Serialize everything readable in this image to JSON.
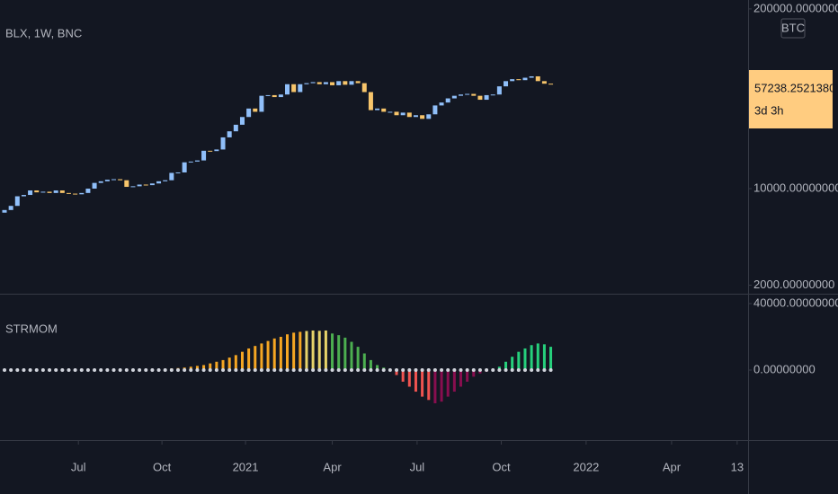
{
  "chart_data": [
    {
      "type": "candlestick",
      "title": "BLX, 1W, BNC",
      "currency": "BTC",
      "countdown": "3d 3h",
      "log": true,
      "grid": false,
      "up_color": "#90bff9",
      "down_color": "#f7c56b",
      "ylim": [
        1735,
        232000
      ],
      "yticks": [
        {
          "value": 200000,
          "label": "200000.00000000"
        },
        {
          "value": 10000,
          "label": "10000.00000000"
        },
        {
          "value": 2000,
          "label": "2000.00000000"
        }
      ],
      "open": [
        6700,
        7000,
        7500,
        8800,
        9000,
        9700,
        9400,
        9500,
        9300,
        9700,
        9300,
        9200,
        9100,
        9300,
        10000,
        11000,
        11300,
        11600,
        11700,
        11500,
        10300,
        10400,
        10700,
        10600,
        10900,
        11300,
        11500,
        13000,
        13100,
        15500,
        15700,
        16000,
        18800,
        18700,
        19200,
        23500,
        26000,
        29000,
        33000,
        38000,
        36000,
        47000,
        47500,
        46000,
        48000,
        57000,
        50000,
        57000,
        58000,
        59000,
        57000,
        59000,
        56000,
        60000,
        56500,
        60000,
        58000,
        50000,
        37000,
        38000,
        36000,
        36000,
        34000,
        35500,
        33000,
        34000,
        32000,
        34500,
        40000,
        42000,
        45000,
        47000,
        48000,
        48500,
        47000,
        44000,
        47500,
        48000,
        55000,
        60000,
        62000,
        61000,
        63500,
        65000,
        60000,
        57500
      ],
      "close": [
        7000,
        7500,
        8800,
        9000,
        9700,
        9400,
        9500,
        9300,
        9700,
        9300,
        9200,
        9100,
        9300,
        10000,
        11000,
        11300,
        11600,
        11700,
        11500,
        10300,
        10400,
        10700,
        10600,
        10900,
        11300,
        11500,
        13000,
        13100,
        15500,
        15700,
        16000,
        18800,
        18700,
        19200,
        23500,
        26000,
        29000,
        33000,
        38000,
        36000,
        47000,
        47500,
        46000,
        48000,
        57000,
        50000,
        57000,
        58000,
        59000,
        57000,
        59000,
        56000,
        60000,
        56500,
        60000,
        58000,
        50000,
        37000,
        38000,
        36000,
        36000,
        34000,
        35500,
        33000,
        34000,
        32000,
        34500,
        40000,
        42000,
        45000,
        47000,
        48000,
        48500,
        47000,
        44000,
        47500,
        48000,
        55000,
        60000,
        62000,
        61000,
        63500,
        65000,
        60000,
        57500,
        57238.25213809
      ]
    },
    {
      "type": "bar",
      "title": "STRMOM",
      "grid": false,
      "ylim": [
        -42160,
        45950
      ],
      "yticks": [
        {
          "value": 40000,
          "label": "40000.00000000"
        },
        {
          "value": 0,
          "label": "0.00000000"
        }
      ],
      "xlim": [
        -0.7,
        115.7
      ],
      "xticks": [
        {
          "value": 11.5,
          "label": "Jul"
        },
        {
          "value": 24.5,
          "label": "Oct"
        },
        {
          "value": 37.5,
          "label": "2021"
        },
        {
          "value": 51,
          "label": "Apr"
        },
        {
          "value": 64.2,
          "label": "Jul"
        },
        {
          "value": 77.3,
          "label": "Oct"
        },
        {
          "value": 90.5,
          "label": "2022"
        },
        {
          "value": 103.8,
          "label": "Apr"
        },
        {
          "value": 114,
          "label": "13"
        }
      ],
      "values": [
        300,
        200,
        500,
        400,
        300,
        200,
        400,
        300,
        200,
        300,
        400,
        300,
        500,
        600,
        400,
        300,
        200,
        300,
        400,
        300,
        200,
        300,
        400,
        500,
        600,
        800,
        1000,
        1200,
        1500,
        2000,
        2500,
        3000,
        4000,
        5000,
        6000,
        7500,
        9000,
        11000,
        13000,
        14500,
        16000,
        17500,
        19000,
        20000,
        21500,
        22500,
        23000,
        23500,
        23800,
        23600,
        23800,
        22000,
        21000,
        19500,
        17000,
        14000,
        10000,
        6000,
        3000,
        1500,
        500,
        -3000,
        -7000,
        -10000,
        -13000,
        -16000,
        -18000,
        -20000,
        -19000,
        -16000,
        -13000,
        -10000,
        -7000,
        -4000,
        -2000,
        -1000,
        -500,
        2000,
        5000,
        8000,
        11000,
        13000,
        15000,
        16000,
        15500,
        14000
      ],
      "colors": [
        "#f5a623",
        "#f5a623",
        "#f5a623",
        "#f5a623",
        "#f5a623",
        "#f5a623",
        "#f5a623",
        "#f5a623",
        "#f5a623",
        "#f5a623",
        "#f5a623",
        "#f5a623",
        "#f5a623",
        "#f5a623",
        "#f5a623",
        "#f5a623",
        "#f5a623",
        "#f5a623",
        "#f5a623",
        "#f5a623",
        "#f5a623",
        "#f5a623",
        "#f5a623",
        "#f5a623",
        "#f5a623",
        "#f5a623",
        "#f5a623",
        "#f5a623",
        "#f5a623",
        "#f5a623",
        "#f5a623",
        "#f5a623",
        "#f5a623",
        "#f5a623",
        "#f5a623",
        "#f5a623",
        "#f5a623",
        "#f5a623",
        "#f5a623",
        "#f5a623",
        "#f5a623",
        "#f5a623",
        "#f5a623",
        "#f5a623",
        "#f5a623",
        "#f5a623",
        "#f5a623",
        "#e6d36a",
        "#e6d36a",
        "#e6d36a",
        "#e6d36a",
        "#4caf50",
        "#4caf50",
        "#4caf50",
        "#4caf50",
        "#4caf50",
        "#4caf50",
        "#4caf50",
        "#4caf50",
        "#4caf50",
        "#4caf50",
        "#ef5350",
        "#ef5350",
        "#ef5350",
        "#ef5350",
        "#ef5350",
        "#ef5350",
        "#880e4f",
        "#880e4f",
        "#880e4f",
        "#880e4f",
        "#880e4f",
        "#880e4f",
        "#880e4f",
        "#880e4f",
        "#880e4f",
        "#880e4f",
        "#26d07c",
        "#26d07c",
        "#26d07c",
        "#26d07c",
        "#26d07c",
        "#26d07c",
        "#26d07c",
        "#26d07c",
        "#26d07c"
      ],
      "markers": {
        "color": "#d1d4dc",
        "values": [
          0,
          0,
          0,
          0,
          0,
          0,
          0,
          0,
          0,
          0,
          0,
          0,
          0,
          0,
          0,
          0,
          0,
          0,
          0,
          0,
          0,
          0,
          0,
          0,
          0,
          0,
          0,
          0,
          0,
          0,
          0,
          0,
          0,
          0,
          0,
          0,
          0,
          0,
          0,
          0,
          0,
          0,
          0,
          0,
          0,
          0,
          0,
          0,
          0,
          0,
          0,
          0,
          0,
          0,
          0,
          0,
          0,
          0,
          0,
          0,
          0,
          0,
          0,
          0,
          0,
          0,
          0,
          0,
          0,
          0,
          0,
          0,
          0,
          0,
          0,
          0,
          0,
          0,
          0,
          0,
          0,
          0,
          0,
          0,
          0,
          0
        ]
      }
    }
  ]
}
